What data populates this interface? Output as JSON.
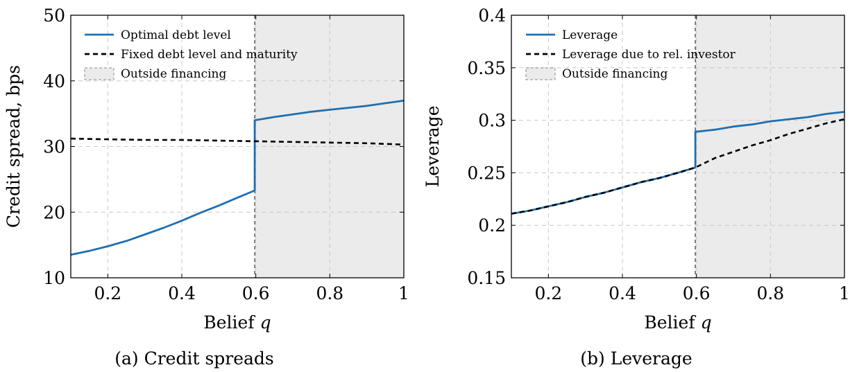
{
  "chart_data": [
    {
      "type": "line",
      "caption": "(a) Credit spreads",
      "xlabel": "Belief",
      "xlabel_var": "q",
      "ylabel": "Credit spread, bps",
      "xlim": [
        0.1,
        1
      ],
      "ylim": [
        10,
        50
      ],
      "xticks": [
        0.2,
        0.4,
        0.6,
        0.8,
        1
      ],
      "xtick_labels": [
        "0.2",
        "0.4",
        "0.6",
        "0.8",
        "1"
      ],
      "yticks": [
        10,
        20,
        30,
        40,
        50
      ],
      "ytick_labels": [
        "10",
        "20",
        "30",
        "40",
        "50"
      ],
      "grid": true,
      "legend_position": "top-left",
      "threshold_x": 0.597,
      "shaded_region": {
        "name": "Outside financing",
        "x": [
          0.597,
          1
        ]
      },
      "series": [
        {
          "name": "Optimal debt level",
          "style": "solid",
          "color": "#1f6fb2",
          "x": [
            0.1,
            0.15,
            0.2,
            0.25,
            0.3,
            0.35,
            0.4,
            0.45,
            0.5,
            0.55,
            0.597,
            0.597,
            0.65,
            0.7,
            0.75,
            0.8,
            0.85,
            0.9,
            0.95,
            1.0
          ],
          "y": [
            13.5,
            14.1,
            14.8,
            15.6,
            16.6,
            17.6,
            18.7,
            19.9,
            21.0,
            22.2,
            23.3,
            34.0,
            34.5,
            34.9,
            35.3,
            35.6,
            35.9,
            36.2,
            36.6,
            37.0
          ]
        },
        {
          "name": "Fixed debt level and maturity",
          "style": "dashed",
          "color": "#000000",
          "x": [
            0.1,
            0.2,
            0.3,
            0.4,
            0.5,
            0.6,
            0.7,
            0.8,
            0.9,
            1.0
          ],
          "y": [
            31.2,
            31.1,
            31.0,
            31.0,
            30.9,
            30.8,
            30.7,
            30.6,
            30.5,
            30.3
          ]
        }
      ]
    },
    {
      "type": "line",
      "caption": "(b) Leverage",
      "xlabel": "Belief",
      "xlabel_var": "q",
      "ylabel": "Leverage",
      "xlim": [
        0.1,
        1
      ],
      "ylim": [
        0.15,
        0.4
      ],
      "xticks": [
        0.2,
        0.4,
        0.6,
        0.8,
        1
      ],
      "xtick_labels": [
        "0.2",
        "0.4",
        "0.6",
        "0.8",
        "1"
      ],
      "yticks": [
        0.15,
        0.2,
        0.25,
        0.3,
        0.35,
        0.4
      ],
      "ytick_labels": [
        "0.15",
        "0.2",
        "0.25",
        "0.3",
        "0.35",
        "0.4"
      ],
      "grid": true,
      "legend_position": "top-left",
      "threshold_x": 0.597,
      "shaded_region": {
        "name": "Outside financing",
        "x": [
          0.597,
          1
        ]
      },
      "series": [
        {
          "name": "Leverage",
          "style": "solid",
          "color": "#1f6fb2",
          "x": [
            0.1,
            0.15,
            0.2,
            0.25,
            0.3,
            0.35,
            0.4,
            0.45,
            0.5,
            0.55,
            0.597,
            0.597,
            0.65,
            0.7,
            0.75,
            0.8,
            0.85,
            0.9,
            0.95,
            1.0
          ],
          "y": [
            0.211,
            0.214,
            0.218,
            0.222,
            0.227,
            0.231,
            0.236,
            0.241,
            0.245,
            0.25,
            0.255,
            0.289,
            0.291,
            0.294,
            0.296,
            0.299,
            0.301,
            0.303,
            0.306,
            0.308
          ]
        },
        {
          "name": "Leverage due to rel. investor",
          "style": "dashed",
          "color": "#000000",
          "x": [
            0.1,
            0.15,
            0.2,
            0.25,
            0.3,
            0.35,
            0.4,
            0.45,
            0.5,
            0.55,
            0.597,
            0.65,
            0.7,
            0.75,
            0.8,
            0.85,
            0.9,
            0.95,
            1.0
          ],
          "y": [
            0.211,
            0.214,
            0.218,
            0.222,
            0.227,
            0.231,
            0.236,
            0.241,
            0.245,
            0.25,
            0.255,
            0.264,
            0.27,
            0.276,
            0.281,
            0.287,
            0.292,
            0.297,
            0.301
          ]
        }
      ]
    }
  ]
}
